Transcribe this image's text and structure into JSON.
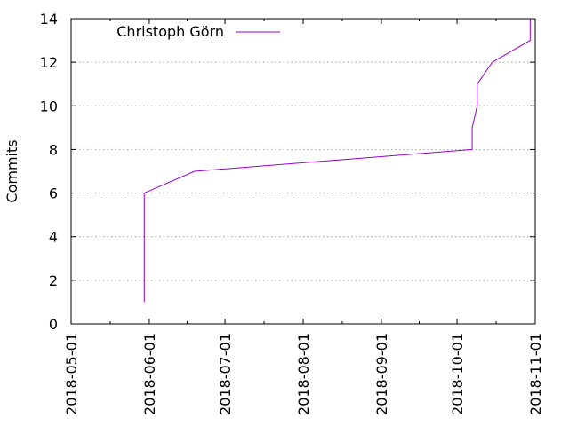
{
  "chart_data": {
    "type": "line",
    "title": "",
    "xlabel": "",
    "ylabel": "Commits",
    "x_tick_labels": [
      "2018-05-01",
      "2018-06-01",
      "2018-07-01",
      "2018-08-01",
      "2018-09-01",
      "2018-10-01",
      "2018-11-01"
    ],
    "y_tick_labels": [
      "0",
      "2",
      "4",
      "6",
      "8",
      "10",
      "12",
      "14"
    ],
    "xlim": [
      "2018-05-01",
      "2018-11-01"
    ],
    "ylim": [
      0,
      14
    ],
    "grid": "horizontal dotted",
    "legend_position": "top-left",
    "series": [
      {
        "name": "Christoph Görn",
        "color": "#9400d3",
        "points": [
          {
            "x": "2018-05-30",
            "y": 1
          },
          {
            "x": "2018-05-30",
            "y": 6
          },
          {
            "x": "2018-06-19",
            "y": 7
          },
          {
            "x": "2018-10-07",
            "y": 8
          },
          {
            "x": "2018-10-07",
            "y": 9
          },
          {
            "x": "2018-10-09",
            "y": 10
          },
          {
            "x": "2018-10-09",
            "y": 11
          },
          {
            "x": "2018-10-15",
            "y": 12
          },
          {
            "x": "2018-10-30",
            "y": 13
          },
          {
            "x": "2018-10-30",
            "y": 14
          }
        ]
      }
    ]
  }
}
